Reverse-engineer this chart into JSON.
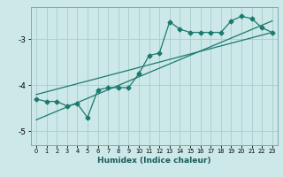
{
  "xlabel": "Humidex (Indice chaleur)",
  "bg_color": "#cce8e8",
  "grid_color": "#aacccc",
  "line_color": "#1a7a6e",
  "marker": "D",
  "marker_size": 2.5,
  "xlim": [
    -0.5,
    23.5
  ],
  "ylim": [
    -5.3,
    -2.3
  ],
  "yticks": [
    -5,
    -4,
    -3
  ],
  "xticks": [
    0,
    1,
    2,
    3,
    4,
    5,
    6,
    7,
    8,
    9,
    10,
    11,
    12,
    13,
    14,
    15,
    16,
    17,
    18,
    19,
    20,
    21,
    22,
    23
  ],
  "data_x": [
    0,
    1,
    2,
    3,
    4,
    5,
    6,
    7,
    8,
    9,
    10,
    11,
    12,
    13,
    14,
    15,
    16,
    17,
    18,
    19,
    20,
    21,
    22,
    23
  ],
  "data_y": [
    -4.3,
    -4.35,
    -4.35,
    -4.45,
    -4.4,
    -4.7,
    -4.1,
    -4.05,
    -4.05,
    -4.05,
    -3.75,
    -3.35,
    -3.3,
    -2.62,
    -2.78,
    -2.85,
    -2.85,
    -2.85,
    -2.85,
    -2.6,
    -2.5,
    -2.55,
    -2.75,
    -2.85
  ],
  "line1_x": [
    0,
    23
  ],
  "line1_y": [
    -4.75,
    -2.6
  ],
  "line2_x": [
    0,
    23
  ],
  "line2_y": [
    -4.2,
    -2.85
  ],
  "xlabel_fontsize": 6.5,
  "ylabel_fontsize": 6.5,
  "xtick_fontsize": 4.8,
  "ytick_fontsize": 6.5
}
